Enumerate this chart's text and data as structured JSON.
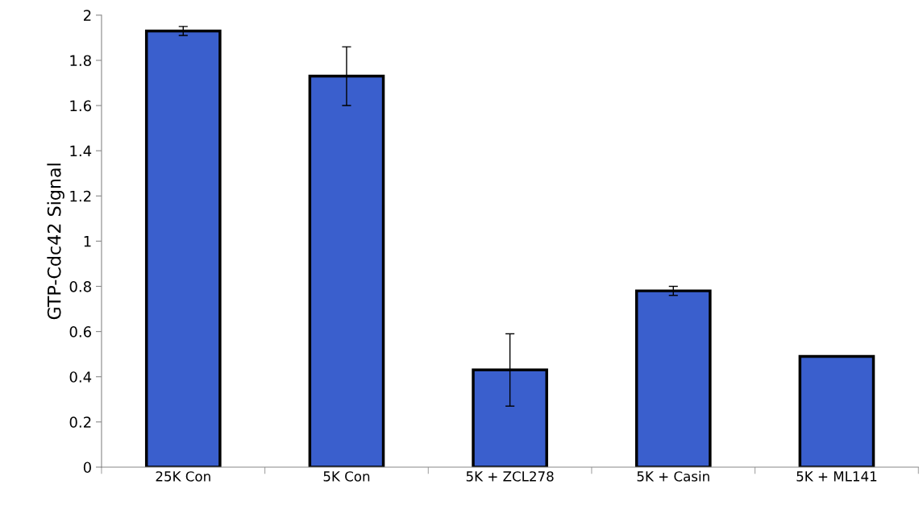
{
  "chart_data": {
    "type": "bar",
    "ylabel": "GTP-Cdc42 Signal",
    "categories": [
      "25K Con",
      "5K Con",
      "5K + ZCL278",
      "5K + Casin",
      "5K + ML141"
    ],
    "values": [
      1.93,
      1.73,
      0.43,
      0.78,
      0.49
    ],
    "errors": [
      0.02,
      0.13,
      0.16,
      0.02,
      null
    ],
    "color": "#3a5fcd",
    "ylim": [
      0,
      2
    ],
    "yticks": [
      0,
      0.2,
      0.4,
      0.6,
      0.8,
      1,
      1.2,
      1.4,
      1.6,
      1.8,
      2
    ],
    "grid": false
  }
}
